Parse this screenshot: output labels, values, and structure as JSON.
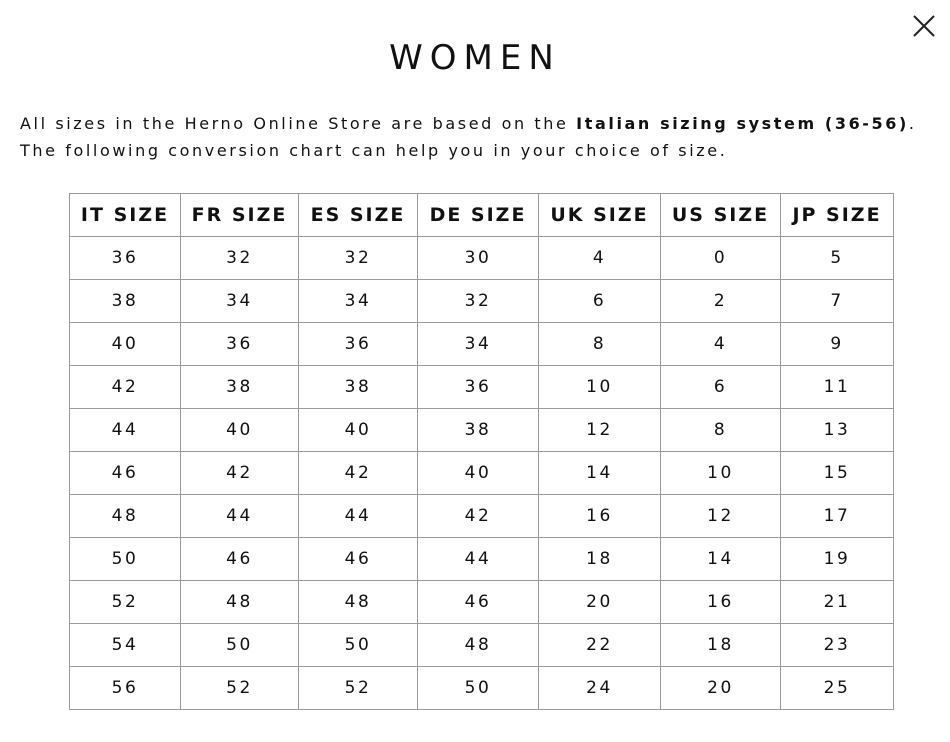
{
  "title": "WOMEN",
  "intro": {
    "line1_prefix": "All sizes in the Herno Online Store are based on the ",
    "line1_bold": "Italian sizing system (36-56)",
    "line1_suffix": ".",
    "line2": "The following conversion chart can help you in your choice of size."
  },
  "close_icon": "close-x-icon",
  "table": {
    "headers": [
      "IT SIZE",
      "FR SIZE",
      "ES SIZE",
      "DE SIZE",
      "UK SIZE",
      "US SIZE",
      "JP SIZE"
    ],
    "rows": [
      [
        "36",
        "32",
        "32",
        "30",
        "4",
        "0",
        "5"
      ],
      [
        "38",
        "34",
        "34",
        "32",
        "6",
        "2",
        "7"
      ],
      [
        "40",
        "36",
        "36",
        "34",
        "8",
        "4",
        "9"
      ],
      [
        "42",
        "38",
        "38",
        "36",
        "10",
        "6",
        "11"
      ],
      [
        "44",
        "40",
        "40",
        "38",
        "12",
        "8",
        "13"
      ],
      [
        "46",
        "42",
        "42",
        "40",
        "14",
        "10",
        "15"
      ],
      [
        "48",
        "44",
        "44",
        "42",
        "16",
        "12",
        "17"
      ],
      [
        "50",
        "46",
        "46",
        "44",
        "18",
        "14",
        "19"
      ],
      [
        "52",
        "48",
        "48",
        "46",
        "20",
        "16",
        "21"
      ],
      [
        "54",
        "50",
        "50",
        "48",
        "22",
        "18",
        "23"
      ],
      [
        "56",
        "52",
        "52",
        "50",
        "24",
        "20",
        "25"
      ]
    ]
  }
}
